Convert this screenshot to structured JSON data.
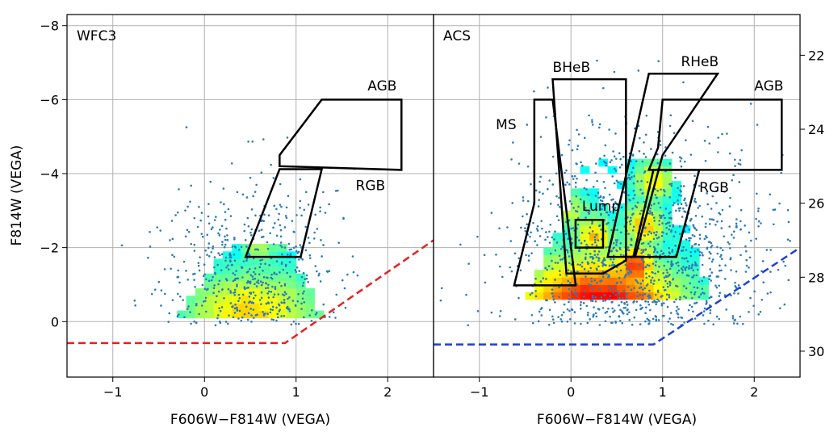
{
  "chart_data": [
    {
      "type": "scatter",
      "panel": "WFC3",
      "title": "WFC3",
      "xlabel": "F606W−F814W (VEGA)",
      "ylabel": "F814W (VEGA)",
      "xlim": [
        -1.5,
        2.5
      ],
      "ylim": [
        1.5,
        -8.3
      ],
      "x_ticks": [
        -1,
        0,
        1,
        2
      ],
      "x_tick_labels": [
        "−1",
        "0",
        "1",
        "2"
      ],
      "y_ticks": [
        0,
        -2,
        -4,
        -6,
        -8
      ],
      "y_tick_labels": [
        "0",
        "−2",
        "−4",
        "−6",
        "−8"
      ],
      "grid": true,
      "regions": [
        {
          "label": "AGB",
          "label_pos": [
            1.78,
            -6.25
          ],
          "points": [
            [
              0.82,
              -4.5
            ],
            [
              0.82,
              -4.2
            ],
            [
              2.15,
              -4.1
            ],
            [
              2.15,
              -6.0
            ],
            [
              1.28,
              -6.0
            ]
          ]
        },
        {
          "label": "RGB",
          "label_pos": [
            1.65,
            -3.55
          ],
          "points": [
            [
              0.82,
              -4.12
            ],
            [
              1.28,
              -4.12
            ],
            [
              1.05,
              -1.75
            ],
            [
              0.45,
              -1.75
            ]
          ]
        }
      ],
      "completeness_line": {
        "color": "#e8201e",
        "points": [
          [
            -1.5,
            0.58
          ],
          [
            0.88,
            0.58
          ],
          [
            2.5,
            -2.2
          ]
        ]
      },
      "density": {
        "center": [
          0.5,
          -0.3
        ],
        "extent_x": [
          -0.3,
          1.3
        ],
        "extent_y": [
          -0.1,
          -1.9
        ],
        "peak_level": 0.5,
        "blobs": [
          [
            0.92,
            -3.6,
            0.38
          ],
          [
            0.85,
            -3.2,
            0.3
          ],
          [
            0.88,
            -2.8,
            0.3
          ],
          [
            0.6,
            -2.1,
            0.34
          ],
          [
            0.78,
            -2.4,
            0.32
          ]
        ]
      },
      "scatter_points": {
        "count": 700,
        "center": [
          0.55,
          -1.0
        ]
      },
      "panel_ticks_right": false
    },
    {
      "type": "scatter",
      "panel": "ACS",
      "title": "ACS",
      "xlabel": "F606W−F814W (VEGA)",
      "ylabel": "",
      "xlim": [
        -1.5,
        2.5
      ],
      "ylim": [
        1.5,
        -8.3
      ],
      "x_ticks": [
        -1,
        0,
        1,
        2
      ],
      "x_tick_labels": [
        "−1",
        "0",
        "1",
        "2"
      ],
      "y2_ticks": [
        22,
        24,
        26,
        28,
        30
      ],
      "y2_tick_labels": [
        "22",
        "24",
        "26",
        "28",
        "30"
      ],
      "y2_offset": 29.2,
      "grid": true,
      "regions": [
        {
          "label": "MS",
          "label_pos": [
            -0.82,
            -5.2
          ],
          "points": [
            [
              -0.4,
              -6.0
            ],
            [
              -0.2,
              -6.0
            ],
            [
              0.05,
              -1.0
            ],
            [
              0.05,
              -1.0
            ],
            [
              0.05,
              -0.98
            ],
            [
              -0.62,
              -0.98
            ],
            [
              -0.4,
              -3.2
            ]
          ]
        },
        {
          "label": "BHeB",
          "label_pos": [
            -0.2,
            -6.75
          ],
          "points": [
            [
              -0.2,
              -6.55
            ],
            [
              0.6,
              -6.55
            ],
            [
              0.6,
              -1.65
            ],
            [
              0.35,
              -1.3
            ],
            [
              -0.05,
              -1.3
            ]
          ]
        },
        {
          "label": "RHeB",
          "label_pos": [
            1.2,
            -6.9
          ],
          "points": [
            [
              0.85,
              -6.7
            ],
            [
              1.6,
              -6.7
            ],
            [
              1.0,
              -4.5
            ],
            [
              0.7,
              -1.75
            ],
            [
              0.4,
              -1.75
            ]
          ]
        },
        {
          "label": "AGB",
          "label_pos": [
            2.0,
            -6.25
          ],
          "points": [
            [
              1.0,
              -6.0
            ],
            [
              2.3,
              -6.0
            ],
            [
              2.3,
              -4.1
            ],
            [
              0.85,
              -4.1
            ],
            [
              0.95,
              -4.7
            ]
          ]
        },
        {
          "label": "RGB",
          "label_pos": [
            1.4,
            -3.5
          ],
          "points": [
            [
              0.9,
              -4.1
            ],
            [
              1.4,
              -4.1
            ],
            [
              1.15,
              -1.75
            ],
            [
              0.68,
              -1.75
            ]
          ]
        },
        {
          "label": "Lump",
          "label_pos": [
            0.12,
            -3.0
          ],
          "points": [
            [
              0.05,
              -2.75
            ],
            [
              0.35,
              -2.75
            ],
            [
              0.35,
              -2.0
            ],
            [
              0.05,
              -2.0
            ]
          ]
        }
      ],
      "completeness_line": {
        "color": "#1f3fd6",
        "points": [
          [
            -1.5,
            0.62
          ],
          [
            0.9,
            0.62
          ],
          [
            2.5,
            -2.0
          ]
        ]
      },
      "density": {
        "center": [
          0.3,
          -0.1
        ],
        "extent_x": [
          -0.6,
          1.6
        ],
        "extent_y": [
          -0.6,
          -4.3
        ],
        "peak_level": 1.0,
        "blobs": [
          [
            0.25,
            -2.3,
            0.55
          ],
          [
            0.0,
            -3.0,
            0.35
          ],
          [
            0.8,
            -2.6,
            0.55
          ],
          [
            0.7,
            -1.5,
            0.8
          ],
          [
            0.9,
            -3.8,
            0.45
          ]
        ]
      },
      "scatter_points": {
        "count": 1600,
        "center": [
          0.7,
          -1.5
        ]
      },
      "panel_ticks_right": true
    }
  ]
}
